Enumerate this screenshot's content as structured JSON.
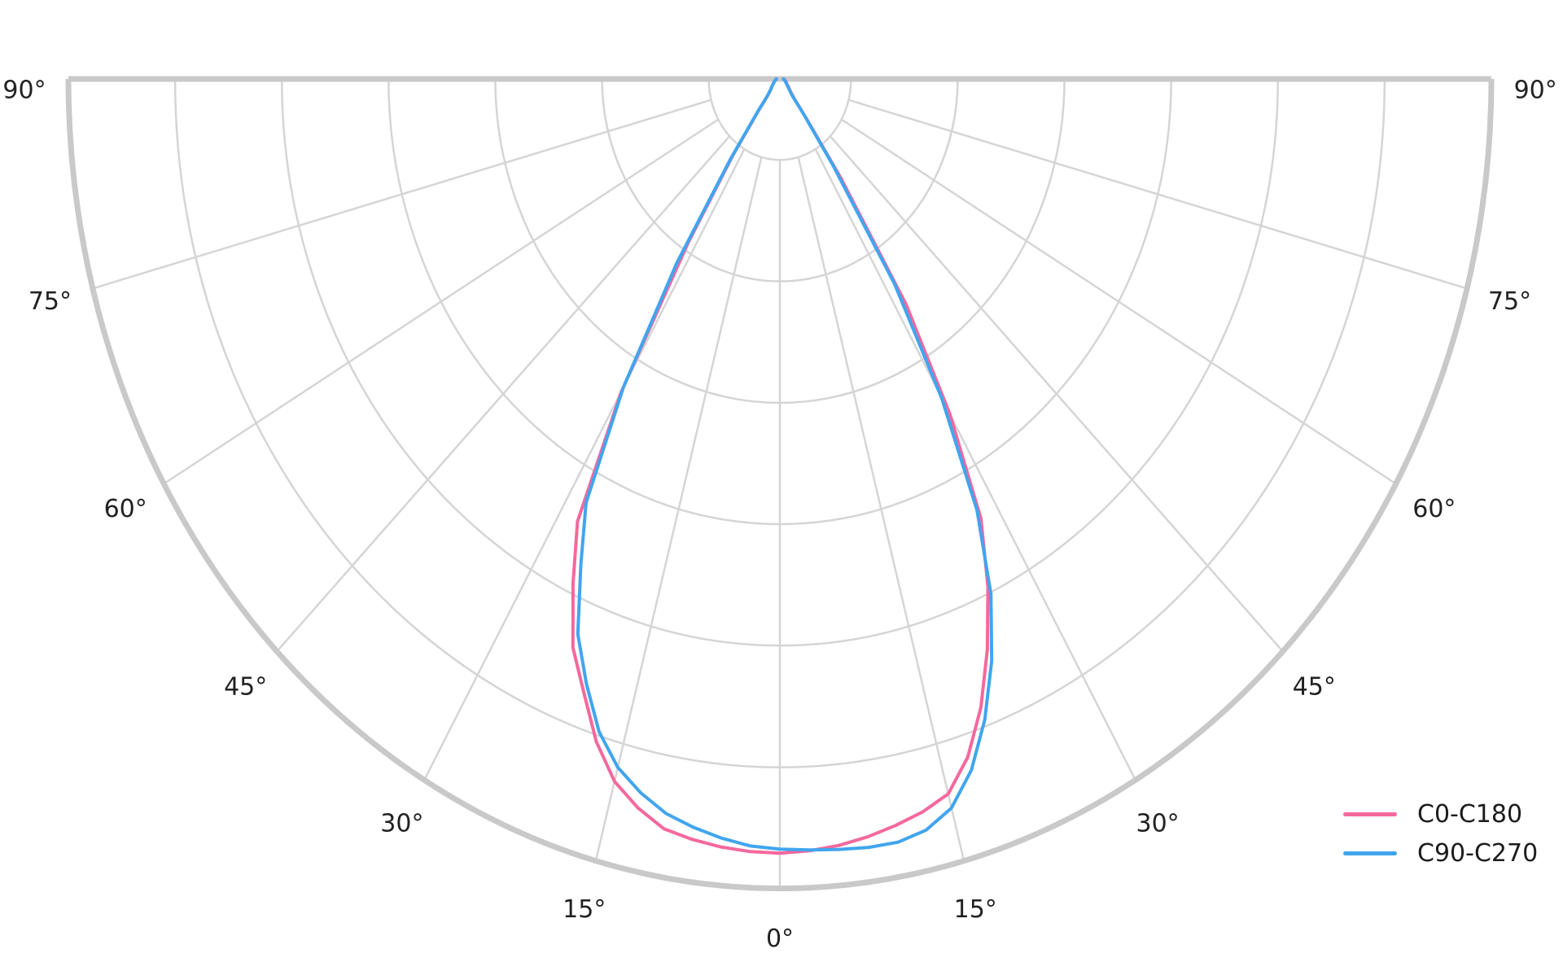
{
  "page": {
    "background": "#ffffff",
    "title": ""
  },
  "chart_data": {
    "type": "line",
    "subtype": "polar_photometric_intensity_distribution",
    "title": "",
    "xlabel": "",
    "ylabel": "",
    "orientation": "0° at nadir (bottom center), ±90° horizontal at top edge, pole at top center",
    "angle_tick_degrees": [
      0,
      15,
      30,
      45,
      60,
      75,
      90
    ],
    "angle_tick_labels": [
      "0°",
      "15°",
      "30°",
      "45°",
      "60°",
      "75°",
      "90°"
    ],
    "angle_ticks_mirrored_both_sides": true,
    "spoke_step_deg": 15,
    "spoke_inner_r": 0.1,
    "radial_gridlines_r": [
      0.1,
      0.25,
      0.4,
      0.55,
      0.7,
      0.85,
      1.0
    ],
    "rmax": 1.0,
    "radial_tick_labels_shown": false,
    "grid_on": true,
    "grid_color": "#d5d5d5",
    "boundary_color": "#c9c9c9",
    "tick_label_color": "#212121",
    "legend": {
      "position": "lower-right",
      "frame": false
    },
    "gamma_deg": [
      0,
      2.5,
      5,
      7.5,
      10,
      12.5,
      15,
      17.5,
      20,
      22.5,
      25,
      27.5,
      30,
      32.5,
      35,
      37.5,
      40,
      45,
      50,
      55,
      60,
      65,
      70,
      75,
      80,
      85,
      90
    ],
    "series": [
      {
        "name": "C0-C180",
        "color": "#f4689e",
        "r_right": [
          0.956,
          0.954,
          0.95,
          0.944,
          0.936,
          0.927,
          0.914,
          0.878,
          0.826,
          0.762,
          0.692,
          0.612,
          0.478,
          0.33,
          0.15,
          0.06,
          0.03,
          0.02,
          0.016,
          0.013,
          0.011,
          0.01,
          0.009,
          0.008,
          0.007,
          0.006,
          0.005
        ],
        "r_left": [
          0.956,
          0.955,
          0.952,
          0.947,
          0.94,
          0.922,
          0.898,
          0.858,
          0.806,
          0.76,
          0.688,
          0.616,
          0.445,
          0.24,
          0.115,
          0.05,
          0.026,
          0.018,
          0.015,
          0.012,
          0.01,
          0.009,
          0.008,
          0.007,
          0.006,
          0.005,
          0.005
        ]
      },
      {
        "name": "C90-C270",
        "color": "#41a5ee",
        "r_right": [
          0.951,
          0.953,
          0.955,
          0.957,
          0.957,
          0.95,
          0.932,
          0.895,
          0.842,
          0.778,
          0.702,
          0.6,
          0.455,
          0.3,
          0.13,
          0.055,
          0.028,
          0.019,
          0.015,
          0.012,
          0.01,
          0.009,
          0.008,
          0.007,
          0.006,
          0.005,
          0.005
        ],
        "r_left": [
          0.951,
          0.948,
          0.941,
          0.932,
          0.921,
          0.903,
          0.88,
          0.845,
          0.795,
          0.742,
          0.662,
          0.59,
          0.44,
          0.27,
          0.122,
          0.052,
          0.027,
          0.018,
          0.015,
          0.012,
          0.01,
          0.009,
          0.008,
          0.007,
          0.006,
          0.005,
          0.005
        ]
      }
    ]
  }
}
